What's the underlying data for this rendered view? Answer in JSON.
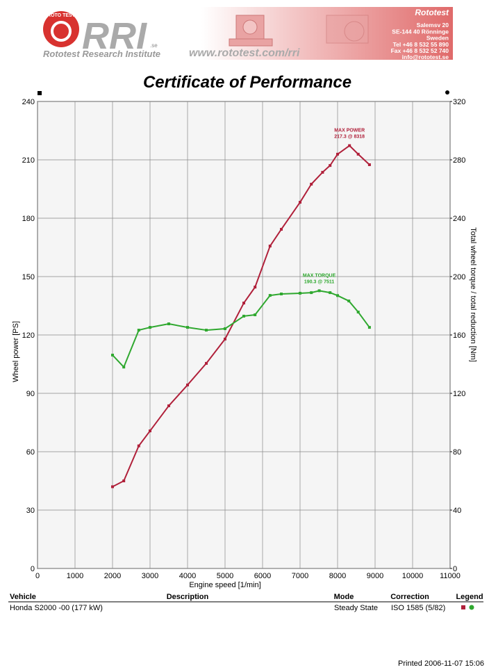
{
  "header": {
    "logo_ring": "ROTO TEST",
    "logo_text": "RRI",
    "logo_suffix": ".se",
    "institute": "Rototest Research Institute",
    "url": "www.rototest.com/rri",
    "address": [
      "Rototest",
      "Salemsv 20",
      "SE-144 40 Rönninge",
      "Sweden",
      "Tel +46 8 532 55 890",
      "Fax +46 8 532 52 740",
      "info@rototest.se"
    ]
  },
  "chart_data": {
    "type": "line",
    "title": "Certificate of Performance",
    "x_label": "Engine speed [1/min]",
    "y_label": "Wheel power [PS]",
    "y2_label": "Total wheel torque / total reduction [Nm]",
    "xlim": [
      0,
      11000
    ],
    "xticks": [
      0,
      1000,
      2000,
      3000,
      4000,
      5000,
      6000,
      7000,
      8000,
      9000,
      10000,
      11000
    ],
    "ylim": [
      0,
      240
    ],
    "yticks": [
      0,
      30,
      60,
      90,
      120,
      150,
      180,
      210,
      240
    ],
    "y2lim": [
      0,
      320
    ],
    "y2ticks": [
      0,
      40,
      80,
      120,
      160,
      200,
      240,
      280,
      320
    ],
    "grid": true,
    "series": [
      {
        "name": "Wheel power",
        "color": "#b0203a",
        "axis": "y",
        "annotation": [
          "MAX POWER",
          "217.3 @ 8318"
        ],
        "x": [
          2000,
          2300,
          2700,
          3000,
          3500,
          4000,
          4500,
          5000,
          5500,
          5800,
          6200,
          6500,
          7000,
          7300,
          7600,
          7800,
          8000,
          8318,
          8550,
          8850
        ],
        "values": [
          42,
          45,
          63,
          70.7,
          83.6,
          94.3,
          105.4,
          117.9,
          136.4,
          144.6,
          165.7,
          174.3,
          188.2,
          197.5,
          203.6,
          207.1,
          212.9,
          217.3,
          212.9,
          207.5
        ]
      },
      {
        "name": "Wheel torque",
        "color": "#2fa82f",
        "axis": "y2",
        "annotation": [
          "MAX TORQUE",
          "190.3 @ 7511"
        ],
        "x": [
          2000,
          2300,
          2700,
          3000,
          3500,
          4000,
          4500,
          5000,
          5500,
          5800,
          6200,
          6500,
          7000,
          7300,
          7511,
          7800,
          8000,
          8300,
          8550,
          8850
        ],
        "values": [
          146.2,
          138,
          163.3,
          165.2,
          167.6,
          165.2,
          163.3,
          164.3,
          172.9,
          173.8,
          187.1,
          188.1,
          188.6,
          189,
          190.3,
          189,
          187,
          183.3,
          175.7,
          165.2
        ]
      }
    ]
  },
  "table": {
    "headers": [
      "Vehicle",
      "Description",
      "Mode",
      "Correction",
      "Legend"
    ],
    "row": {
      "vehicle": "Honda S2000 -00 (177 kW)",
      "mode": "Steady State",
      "correction": "ISO 1585 (5/82)"
    }
  },
  "footer": "Printed 2006-11-07 15:06"
}
